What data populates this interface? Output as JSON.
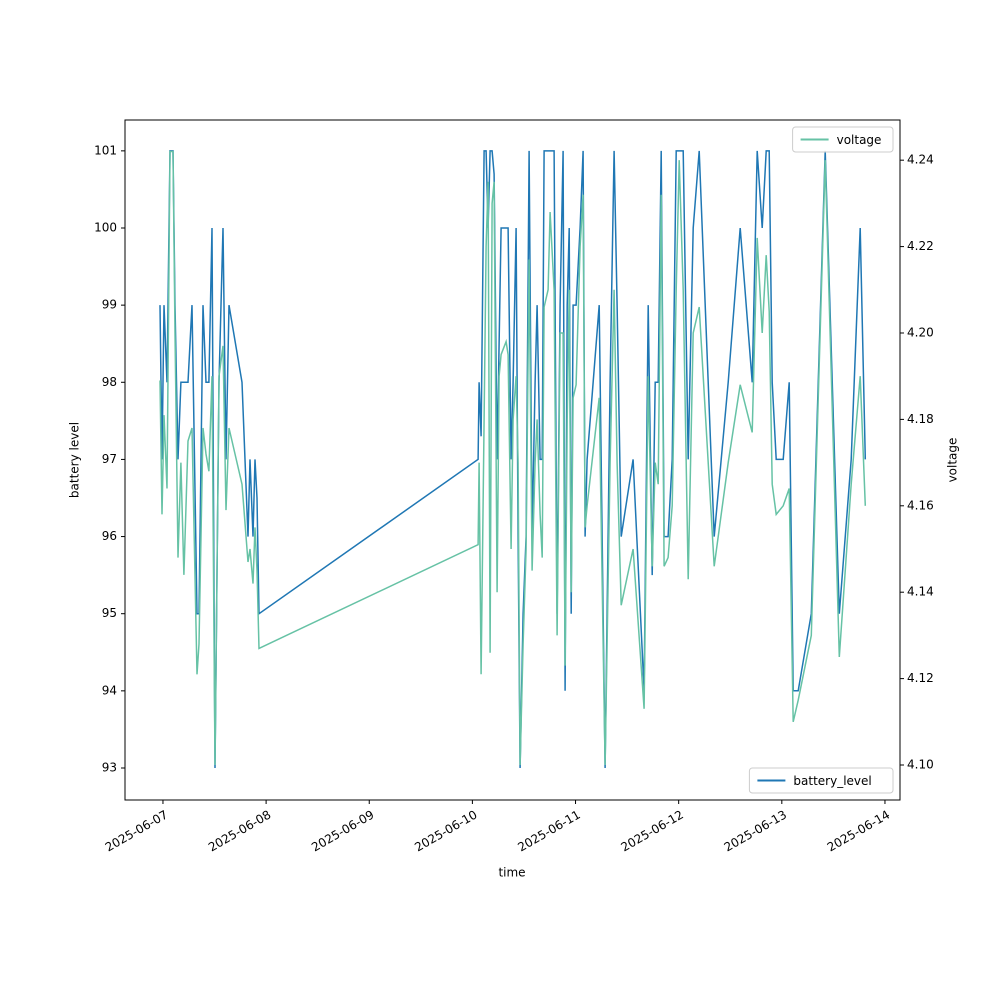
{
  "chart_data": {
    "type": "line",
    "x_label": "time",
    "y_label": "battery level",
    "y2_label": "voltage",
    "x": [
      "2025-06-06T23:18",
      "2025-06-06T23:46",
      "2025-06-07T00:14",
      "2025-06-07T00:56",
      "2025-06-07T01:38",
      "2025-06-07T02:20",
      "2025-06-07T02:48",
      "2025-06-07T03:30",
      "2025-06-07T04:11",
      "2025-06-07T04:53",
      "2025-06-07T05:49",
      "2025-06-07T06:45",
      "2025-06-07T07:55",
      "2025-06-07T08:23",
      "2025-06-07T09:19",
      "2025-06-07T10:01",
      "2025-06-07T10:42",
      "2025-06-07T11:24",
      "2025-06-07T12:06",
      "2025-06-07T13:02",
      "2025-06-07T13:58",
      "2025-06-07T14:40",
      "2025-06-07T15:22",
      "2025-06-07T18:23",
      "2025-06-07T19:47",
      "2025-06-07T20:15",
      "2025-06-07T20:57",
      "2025-06-07T21:25",
      "2025-06-07T21:53",
      "2025-06-07T22:21",
      "2025-06-10T01:20",
      "2025-06-10T01:34",
      "2025-06-10T02:02",
      "2025-06-10T02:43",
      "2025-06-10T03:11",
      "2025-06-10T03:39",
      "2025-06-10T04:07",
      "2025-06-10T04:35",
      "2025-06-10T05:03",
      "2025-06-10T05:45",
      "2025-06-10T06:13",
      "2025-06-10T06:41",
      "2025-06-10T07:51",
      "2025-06-10T08:19",
      "2025-06-10T09:01",
      "2025-06-10T09:28",
      "2025-06-10T10:10",
      "2025-06-10T10:38",
      "2025-06-10T11:06",
      "2025-06-10T11:48",
      "2025-06-10T12:30",
      "2025-06-10T13:12",
      "2025-06-10T13:54",
      "2025-06-10T14:36",
      "2025-06-10T15:04",
      "2025-06-10T15:46",
      "2025-06-10T16:14",
      "2025-06-10T16:41",
      "2025-06-10T17:37",
      "2025-06-10T18:05",
      "2025-06-10T19:01",
      "2025-06-10T19:43",
      "2025-06-10T20:25",
      "2025-06-10T21:07",
      "2025-06-10T21:35",
      "2025-06-10T22:03",
      "2025-06-10T22:31",
      "2025-06-10T22:59",
      "2025-06-10T23:26",
      "2025-06-11T00:08",
      "2025-06-11T01:04",
      "2025-06-11T01:46",
      "2025-06-11T02:14",
      "2025-06-11T02:42",
      "2025-06-11T05:30",
      "2025-06-11T06:53",
      "2025-06-11T08:03",
      "2025-06-11T08:59",
      "2025-06-11T09:41",
      "2025-06-11T10:37",
      "2025-06-11T13:24",
      "2025-06-11T15:58",
      "2025-06-11T16:54",
      "2025-06-11T17:50",
      "2025-06-11T18:32",
      "2025-06-11T19:14",
      "2025-06-11T19:56",
      "2025-06-11T20:37",
      "2025-06-11T21:33",
      "2025-06-11T22:29",
      "2025-06-11T23:25",
      "2025-06-12T00:07",
      "2025-06-12T01:03",
      "2025-06-12T02:13",
      "2025-06-12T03:23",
      "2025-06-12T04:46",
      "2025-06-12T08:16",
      "2025-06-12T11:31",
      "2025-06-12T14:19",
      "2025-06-12T17:07",
      "2025-06-12T18:16",
      "2025-06-12T19:26",
      "2025-06-12T20:22",
      "2025-06-12T21:04",
      "2025-06-12T21:46",
      "2025-06-12T22:42",
      "2025-06-13T00:20",
      "2025-06-13T01:43",
      "2025-06-13T02:39",
      "2025-06-13T03:49",
      "2025-06-13T06:51",
      "2025-06-13T10:06",
      "2025-06-13T13:22",
      "2025-06-13T16:09",
      "2025-06-13T18:15",
      "2025-06-13T19:25"
    ],
    "series": [
      {
        "name": "battery_level",
        "color": "#1f77b4",
        "legend": "lower right",
        "values": [
          99,
          97,
          99,
          98,
          101,
          101,
          99,
          97,
          98,
          98,
          98,
          99,
          95,
          95,
          99,
          98,
          98,
          100,
          93,
          98,
          100,
          97,
          99,
          98,
          96,
          97,
          96,
          97,
          96.5,
          95,
          97,
          98,
          97.3,
          101,
          101,
          100,
          101,
          101,
          100.7,
          97,
          98.5,
          100,
          100,
          100,
          97,
          98,
          100,
          96,
          93,
          95,
          96,
          101,
          96,
          98,
          99,
          97,
          97,
          101,
          101,
          101,
          101,
          95,
          99,
          101,
          94,
          99,
          100,
          95,
          99,
          99,
          100,
          101,
          96,
          97,
          99,
          93,
          98,
          101,
          99,
          96,
          97,
          94,
          99,
          95.5,
          98,
          98,
          101,
          96,
          96,
          97,
          101,
          101,
          101,
          97,
          100,
          101,
          96,
          98,
          100,
          98,
          101,
          100,
          101,
          101,
          98,
          97,
          97,
          98,
          94,
          94,
          95,
          101,
          95,
          97,
          100,
          97
        ]
      },
      {
        "name": "voltage",
        "color": "#66c2a5",
        "axis": "y2",
        "legend": "upper right",
        "values": [
          4.189,
          4.158,
          4.181,
          4.164,
          4.242,
          4.242,
          4.2,
          4.148,
          4.17,
          4.144,
          4.175,
          4.178,
          4.121,
          4.128,
          4.178,
          4.172,
          4.168,
          4.19,
          4.1,
          4.19,
          4.197,
          4.159,
          4.178,
          4.165,
          4.147,
          4.15,
          4.142,
          4.155,
          4.145,
          4.127,
          4.151,
          4.17,
          4.121,
          4.18,
          4.22,
          4.235,
          4.126,
          4.23,
          4.235,
          4.14,
          4.19,
          4.195,
          4.198,
          4.195,
          4.15,
          4.18,
          4.19,
          4.17,
          4.1,
          4.128,
          4.15,
          4.217,
          4.145,
          4.17,
          4.18,
          4.158,
          4.148,
          4.206,
          4.21,
          4.228,
          4.21,
          4.13,
          4.2,
          4.2,
          4.123,
          4.18,
          4.21,
          4.14,
          4.185,
          4.188,
          4.22,
          4.232,
          4.155,
          4.16,
          4.185,
          4.1,
          4.17,
          4.21,
          4.17,
          4.137,
          4.15,
          4.113,
          4.19,
          4.146,
          4.17,
          4.165,
          4.232,
          4.146,
          4.148,
          4.16,
          4.21,
          4.24,
          4.21,
          4.143,
          4.2,
          4.206,
          4.146,
          4.17,
          4.188,
          4.177,
          4.222,
          4.2,
          4.218,
          4.205,
          4.165,
          4.158,
          4.16,
          4.164,
          4.11,
          4.115,
          4.13,
          4.24,
          4.125,
          4.165,
          4.19,
          4.16
        ]
      }
    ],
    "xlim": [
      "2025-06-06T15:10",
      "2025-06-14T03:30"
    ],
    "xticks": [
      "2025-06-07",
      "2025-06-08",
      "2025-06-09",
      "2025-06-10",
      "2025-06-11",
      "2025-06-12",
      "2025-06-13",
      "2025-06-14"
    ],
    "ylim": [
      92.585,
      101.4
    ],
    "yticks": [
      93,
      94,
      95,
      96,
      97,
      98,
      99,
      100,
      101
    ],
    "y2lim": [
      4.0919,
      4.2493
    ],
    "y2ticks": [
      {
        "value": 4.1,
        "label": "4.10"
      },
      4.12,
      4.14,
      4.16,
      4.18,
      {
        "value": 4.2,
        "label": "4.20"
      },
      4.22,
      4.24
    ]
  }
}
